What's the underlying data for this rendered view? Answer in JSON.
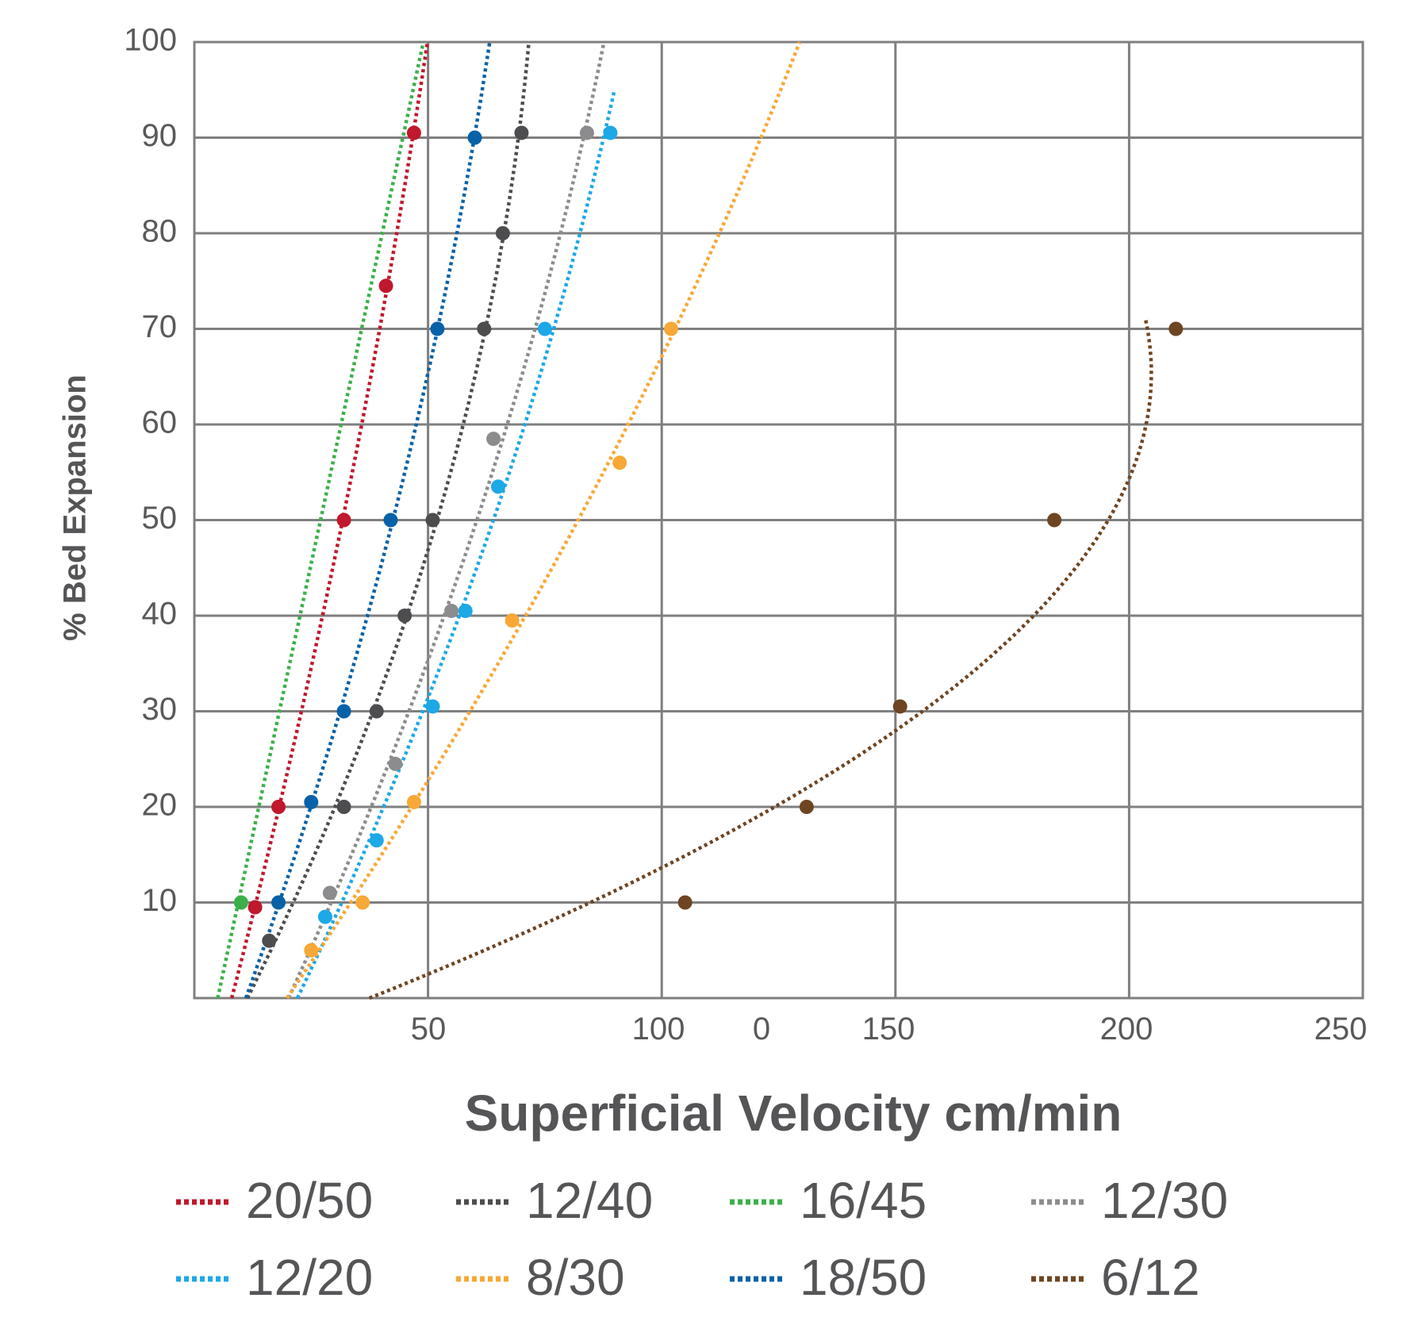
{
  "chart_data": {
    "type": "scatter",
    "title": "",
    "xlabel": "Superficial Velocity cm/min",
    "ylabel": "% Bed Expansion",
    "xlim": [
      0,
      250
    ],
    "ylim": [
      0,
      100
    ],
    "grid": true,
    "legend_position": "bottom",
    "x_tick_labels": [
      "50",
      "100",
      "0",
      "150",
      "200",
      "250"
    ],
    "y_ticks": [
      10,
      20,
      30,
      40,
      50,
      60,
      70,
      80,
      90,
      100
    ],
    "trendline_style": "dotted",
    "series": [
      {
        "name": "20/50",
        "color": "#c0182c",
        "points": [
          [
            13,
            9.5
          ],
          [
            18,
            20
          ],
          [
            32,
            50
          ],
          [
            41,
            74.5
          ],
          [
            47,
            90.5
          ]
        ]
      },
      {
        "name": "12/40",
        "color": "#4d4d4f",
        "points": [
          [
            16,
            6
          ],
          [
            32,
            20
          ],
          [
            39,
            30
          ],
          [
            45,
            40
          ],
          [
            51,
            50
          ],
          [
            62,
            70
          ],
          [
            66,
            80
          ],
          [
            70,
            90.5
          ]
        ]
      },
      {
        "name": "16/45",
        "color": "#3bb04a",
        "points": [
          [
            10,
            10
          ]
        ]
      },
      {
        "name": "12/30",
        "color": "#8c8c8e",
        "points": [
          [
            29,
            11
          ],
          [
            43,
            24.5
          ],
          [
            55,
            40.5
          ],
          [
            64,
            58.5
          ],
          [
            84,
            90.5
          ]
        ]
      },
      {
        "name": "12/20",
        "color": "#1da8e6",
        "points": [
          [
            28,
            8.5
          ],
          [
            39,
            16.5
          ],
          [
            51,
            30.5
          ],
          [
            58,
            40.5
          ],
          [
            65,
            53.5
          ],
          [
            75,
            70
          ],
          [
            89,
            90.5
          ]
        ]
      },
      {
        "name": "8/30",
        "color": "#f7a836",
        "points": [
          [
            25,
            5
          ],
          [
            36,
            10
          ],
          [
            47,
            20.5
          ],
          [
            68,
            39.5
          ],
          [
            91,
            56
          ],
          [
            102,
            70
          ]
        ]
      },
      {
        "name": "18/50",
        "color": "#0862a8",
        "points": [
          [
            18,
            10
          ],
          [
            25,
            20.5
          ],
          [
            32,
            30
          ],
          [
            42,
            50
          ],
          [
            52,
            70
          ],
          [
            60,
            90
          ]
        ]
      },
      {
        "name": "6/12",
        "color": "#6e4522",
        "points": [
          [
            105,
            10
          ],
          [
            131,
            20
          ],
          [
            151,
            30.5
          ],
          [
            184,
            50
          ],
          [
            210,
            70
          ]
        ]
      }
    ]
  }
}
